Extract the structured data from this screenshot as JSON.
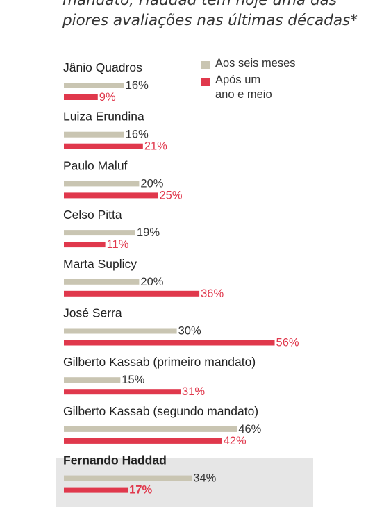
{
  "chart_data": {
    "type": "bar",
    "title_lines": [
      "mandato, Haddad tem hoje uma das",
      "piores avaliações nas últimas décadas*"
    ],
    "categories": [
      "Jânio Quadros",
      "Luiza Erundina",
      "Paulo Maluf",
      "Celso Pitta",
      "Marta Suplicy",
      "José Serra",
      "Gilberto Kassab (primeiro mandato)",
      "Gilberto Kassab (segundo mandato)",
      "Fernando Haddad"
    ],
    "series": [
      {
        "name": "Aos seis meses",
        "color": "#c9c5b2",
        "values": [
          16,
          16,
          20,
          19,
          20,
          30,
          15,
          46,
          34
        ],
        "labels": [
          "16%",
          "16%",
          "20%",
          "19%",
          "20%",
          "30%",
          "15%",
          "46%",
          "34%"
        ]
      },
      {
        "name": "Após um ano e meio",
        "color": "#e0384c",
        "values": [
          9,
          21,
          25,
          11,
          36,
          56,
          31,
          42,
          17
        ],
        "labels": [
          "9%",
          "21%",
          "25%",
          "11%",
          "36%",
          "56%",
          "31%",
          "42%",
          "17%"
        ]
      }
    ],
    "legend": {
      "position": "top-right",
      "entries": [
        {
          "lines": [
            "Aos seis meses"
          ]
        },
        {
          "lines": [
            "Após um",
            "ano e meio"
          ]
        }
      ]
    },
    "highlighted_category": "Fernando Haddad",
    "grid": false,
    "xlabel": "",
    "ylabel": ""
  }
}
